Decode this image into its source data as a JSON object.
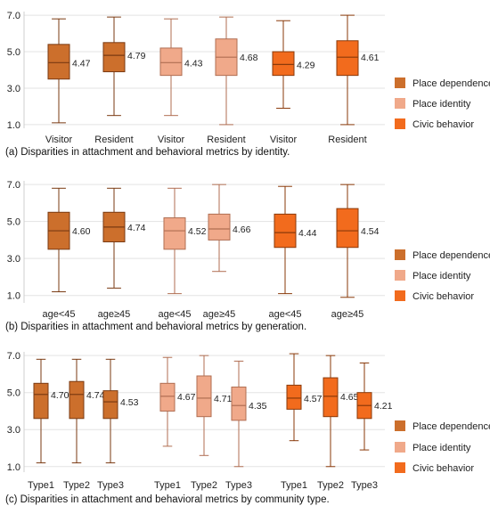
{
  "chart_data": [
    {
      "type": "box",
      "caption": "(a) Disparities in attachment and behavioral metrics by identity.",
      "ylim": [
        0.8,
        7.2
      ],
      "yticks": [
        "1.0",
        "3.0",
        "5.0",
        "7.0"
      ],
      "groups": [
        {
          "labels": [
            "Visitor",
            "Resident"
          ],
          "series": "Place dependence",
          "boxes": [
            {
              "min": 1.1,
              "q1": 3.5,
              "median": 4.4,
              "q3": 5.4,
              "max": 6.8,
              "mean": "4.47"
            },
            {
              "min": 1.5,
              "q1": 3.9,
              "median": 4.8,
              "q3": 5.5,
              "max": 6.9,
              "mean": "4.79"
            }
          ]
        },
        {
          "labels": [
            "Visitor",
            "Resident"
          ],
          "series": "Place identity",
          "boxes": [
            {
              "min": 1.5,
              "q1": 3.7,
              "median": 4.4,
              "q3": 5.2,
              "max": 6.8,
              "mean": "4.43"
            },
            {
              "min": 1.0,
              "q1": 3.7,
              "median": 4.7,
              "q3": 5.7,
              "max": 6.9,
              "mean": "4.68"
            }
          ]
        },
        {
          "labels": [
            "Visitor",
            "Resident"
          ],
          "series": "Civic behavior",
          "boxes": [
            {
              "min": 1.9,
              "q1": 3.7,
              "median": 4.3,
              "q3": 5.0,
              "max": 6.7,
              "mean": "4.29"
            },
            {
              "min": 1.0,
              "q1": 3.7,
              "median": 4.7,
              "q3": 5.6,
              "max": 7.0,
              "mean": "4.61"
            }
          ]
        }
      ]
    },
    {
      "type": "box",
      "caption": "(b) Disparities in attachment and behavioral metrics by generation.",
      "ylim": [
        0.6,
        7.2
      ],
      "yticks": [
        "1.0",
        "3.0",
        "5.0",
        "7.0"
      ],
      "groups": [
        {
          "labels": [
            "age<45",
            "age≥45"
          ],
          "series": "Place dependence",
          "boxes": [
            {
              "min": 1.2,
              "q1": 3.5,
              "median": 4.5,
              "q3": 5.5,
              "max": 6.8,
              "mean": "4.60"
            },
            {
              "min": 1.4,
              "q1": 3.9,
              "median": 4.7,
              "q3": 5.5,
              "max": 6.8,
              "mean": "4.74"
            }
          ]
        },
        {
          "labels": [
            "age<45",
            "age≥45"
          ],
          "series": "Place identity",
          "boxes": [
            {
              "min": 1.1,
              "q1": 3.5,
              "median": 4.5,
              "q3": 5.2,
              "max": 6.8,
              "mean": "4.52"
            },
            {
              "min": 2.3,
              "q1": 4.0,
              "median": 4.6,
              "q3": 5.4,
              "max": 7.0,
              "mean": "4.66"
            }
          ]
        },
        {
          "labels": [
            "age<45",
            "age≥45"
          ],
          "series": "Civic behavior",
          "boxes": [
            {
              "min": 1.1,
              "q1": 3.6,
              "median": 4.4,
              "q3": 5.4,
              "max": 6.9,
              "mean": "4.44"
            },
            {
              "min": 0.9,
              "q1": 3.6,
              "median": 4.5,
              "q3": 5.7,
              "max": 7.0,
              "mean": "4.54"
            }
          ]
        }
      ]
    },
    {
      "type": "box",
      "caption": "(c) Disparities in attachment and behavioral metrics by community type.",
      "ylim": [
        0.7,
        7.2
      ],
      "yticks": [
        "1.0",
        "3.0",
        "5.0",
        "7.0"
      ],
      "groups": [
        {
          "labels": [
            "Type1",
            "Type2",
            "Type3"
          ],
          "series": "Place dependence",
          "boxes": [
            {
              "min": 1.2,
              "q1": 3.6,
              "median": 4.9,
              "q3": 5.5,
              "max": 6.8,
              "mean": "4.70"
            },
            {
              "min": 1.2,
              "q1": 3.6,
              "median": 4.9,
              "q3": 5.6,
              "max": 6.8,
              "mean": "4.74"
            },
            {
              "min": 1.2,
              "q1": 3.6,
              "median": 4.5,
              "q3": 5.1,
              "max": 6.8,
              "mean": "4.53"
            }
          ]
        },
        {
          "labels": [
            "Type1",
            "Type2",
            "Type3"
          ],
          "series": "Place identity",
          "boxes": [
            {
              "min": 2.1,
              "q1": 4.0,
              "median": 4.8,
              "q3": 5.5,
              "max": 6.9,
              "mean": "4.67"
            },
            {
              "min": 1.6,
              "q1": 3.7,
              "median": 4.7,
              "q3": 5.9,
              "max": 7.0,
              "mean": "4.71"
            },
            {
              "min": 1.0,
              "q1": 3.5,
              "median": 4.3,
              "q3": 5.3,
              "max": 6.7,
              "mean": "4.35"
            }
          ]
        },
        {
          "labels": [
            "Type1",
            "Type2",
            "Type3"
          ],
          "series": "Civic behavior",
          "boxes": [
            {
              "min": 2.4,
              "q1": 4.1,
              "median": 4.7,
              "q3": 5.4,
              "max": 7.1,
              "mean": "4.57"
            },
            {
              "min": 1.0,
              "q1": 3.7,
              "median": 4.8,
              "q3": 5.8,
              "max": 7.0,
              "mean": "4.65"
            },
            {
              "min": 1.9,
              "q1": 3.6,
              "median": 4.3,
              "q3": 5.0,
              "max": 6.6,
              "mean": "4.21"
            }
          ]
        }
      ]
    }
  ],
  "legend": [
    {
      "name": "Place dependence",
      "color": "#cc6f2c",
      "edge": "#7a3a12"
    },
    {
      "name": "Place identity",
      "color": "#f0a98a",
      "edge": "#b06e52"
    },
    {
      "name": "Civic behavior",
      "color": "#f26b1d",
      "edge": "#8a3a0a"
    }
  ]
}
